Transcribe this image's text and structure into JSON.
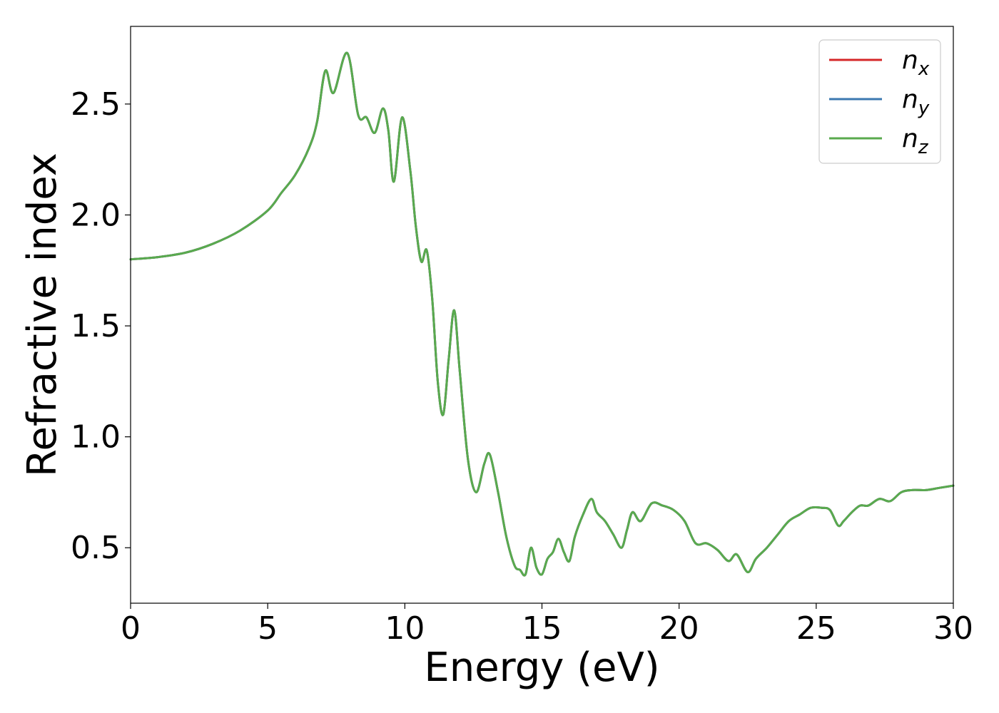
{
  "chart_data": {
    "type": "line",
    "title": "",
    "xlabel": "Energy (eV)",
    "ylabel": "Refractive index",
    "xlim": [
      0,
      30
    ],
    "ylim": [
      0.25,
      2.85
    ],
    "xticks": [
      0,
      5,
      10,
      15,
      20,
      25,
      30
    ],
    "yticks": [
      0.5,
      1.0,
      1.5,
      2.0,
      2.5
    ],
    "grid": false,
    "legend_position": "top-right",
    "colors": {
      "n_x": "#d62728",
      "n_y": "#3b78b0",
      "n_z": "#59aa4e"
    },
    "legend": [
      {
        "key": "n_x",
        "base": "n",
        "sub": "x"
      },
      {
        "key": "n_y",
        "base": "n",
        "sub": "y"
      },
      {
        "key": "n_z",
        "base": "n",
        "sub": "z"
      }
    ],
    "x": [
      0,
      1,
      2,
      3,
      4,
      5,
      5.5,
      6,
      6.5,
      6.8,
      7.1,
      7.4,
      7.9,
      8.3,
      8.6,
      8.9,
      9.2,
      9.4,
      9.6,
      9.9,
      10.2,
      10.4,
      10.6,
      10.8,
      11.0,
      11.2,
      11.4,
      11.6,
      11.8,
      12.0,
      12.3,
      12.6,
      12.9,
      13.1,
      13.4,
      13.7,
      14.0,
      14.2,
      14.4,
      14.6,
      14.8,
      15.0,
      15.2,
      15.4,
      15.6,
      15.8,
      16.0,
      16.2,
      16.5,
      16.8,
      17.0,
      17.3,
      17.6,
      17.9,
      18.1,
      18.3,
      18.6,
      19.0,
      19.4,
      19.8,
      20.2,
      20.6,
      21.0,
      21.4,
      21.8,
      22.1,
      22.5,
      22.8,
      23.2,
      23.6,
      24.0,
      24.4,
      24.8,
      25.2,
      25.5,
      25.8,
      26.0,
      26.3,
      26.6,
      26.9,
      27.3,
      27.7,
      28.1,
      28.5,
      29.0,
      29.5,
      30.0
    ],
    "series": [
      {
        "key": "n_x",
        "values": [
          1.8,
          1.81,
          1.83,
          1.87,
          1.93,
          2.02,
          2.1,
          2.18,
          2.3,
          2.42,
          2.65,
          2.55,
          2.73,
          2.45,
          2.44,
          2.37,
          2.48,
          2.38,
          2.15,
          2.44,
          2.2,
          1.95,
          1.79,
          1.84,
          1.62,
          1.25,
          1.1,
          1.35,
          1.57,
          1.3,
          0.9,
          0.75,
          0.88,
          0.92,
          0.75,
          0.55,
          0.42,
          0.4,
          0.38,
          0.5,
          0.41,
          0.38,
          0.45,
          0.48,
          0.54,
          0.48,
          0.44,
          0.55,
          0.65,
          0.72,
          0.66,
          0.62,
          0.56,
          0.5,
          0.58,
          0.66,
          0.62,
          0.7,
          0.69,
          0.67,
          0.62,
          0.52,
          0.52,
          0.49,
          0.44,
          0.47,
          0.39,
          0.45,
          0.5,
          0.56,
          0.62,
          0.65,
          0.68,
          0.68,
          0.67,
          0.6,
          0.62,
          0.66,
          0.69,
          0.69,
          0.72,
          0.71,
          0.75,
          0.76,
          0.76,
          0.77,
          0.78
        ]
      },
      {
        "key": "n_y",
        "values": [
          1.8,
          1.81,
          1.83,
          1.87,
          1.93,
          2.02,
          2.1,
          2.18,
          2.3,
          2.42,
          2.65,
          2.55,
          2.73,
          2.45,
          2.44,
          2.37,
          2.48,
          2.38,
          2.15,
          2.44,
          2.2,
          1.95,
          1.79,
          1.84,
          1.62,
          1.25,
          1.1,
          1.35,
          1.57,
          1.3,
          0.9,
          0.75,
          0.88,
          0.92,
          0.75,
          0.55,
          0.42,
          0.4,
          0.38,
          0.5,
          0.41,
          0.38,
          0.45,
          0.48,
          0.54,
          0.48,
          0.44,
          0.55,
          0.65,
          0.72,
          0.66,
          0.62,
          0.56,
          0.5,
          0.58,
          0.66,
          0.62,
          0.7,
          0.69,
          0.67,
          0.62,
          0.52,
          0.52,
          0.49,
          0.44,
          0.47,
          0.39,
          0.45,
          0.5,
          0.56,
          0.62,
          0.65,
          0.68,
          0.68,
          0.67,
          0.6,
          0.62,
          0.66,
          0.69,
          0.69,
          0.72,
          0.71,
          0.75,
          0.76,
          0.76,
          0.77,
          0.78
        ]
      },
      {
        "key": "n_z",
        "values": [
          1.8,
          1.81,
          1.83,
          1.87,
          1.93,
          2.02,
          2.1,
          2.18,
          2.3,
          2.42,
          2.65,
          2.55,
          2.73,
          2.45,
          2.44,
          2.37,
          2.48,
          2.38,
          2.15,
          2.44,
          2.2,
          1.95,
          1.79,
          1.84,
          1.62,
          1.25,
          1.1,
          1.35,
          1.57,
          1.3,
          0.9,
          0.75,
          0.88,
          0.92,
          0.75,
          0.55,
          0.42,
          0.4,
          0.38,
          0.5,
          0.41,
          0.38,
          0.45,
          0.48,
          0.54,
          0.48,
          0.44,
          0.55,
          0.65,
          0.72,
          0.66,
          0.62,
          0.56,
          0.5,
          0.58,
          0.66,
          0.62,
          0.7,
          0.69,
          0.67,
          0.62,
          0.52,
          0.52,
          0.49,
          0.44,
          0.47,
          0.39,
          0.45,
          0.5,
          0.56,
          0.62,
          0.65,
          0.68,
          0.68,
          0.67,
          0.6,
          0.62,
          0.66,
          0.69,
          0.69,
          0.72,
          0.71,
          0.75,
          0.76,
          0.76,
          0.77,
          0.78
        ]
      }
    ]
  }
}
